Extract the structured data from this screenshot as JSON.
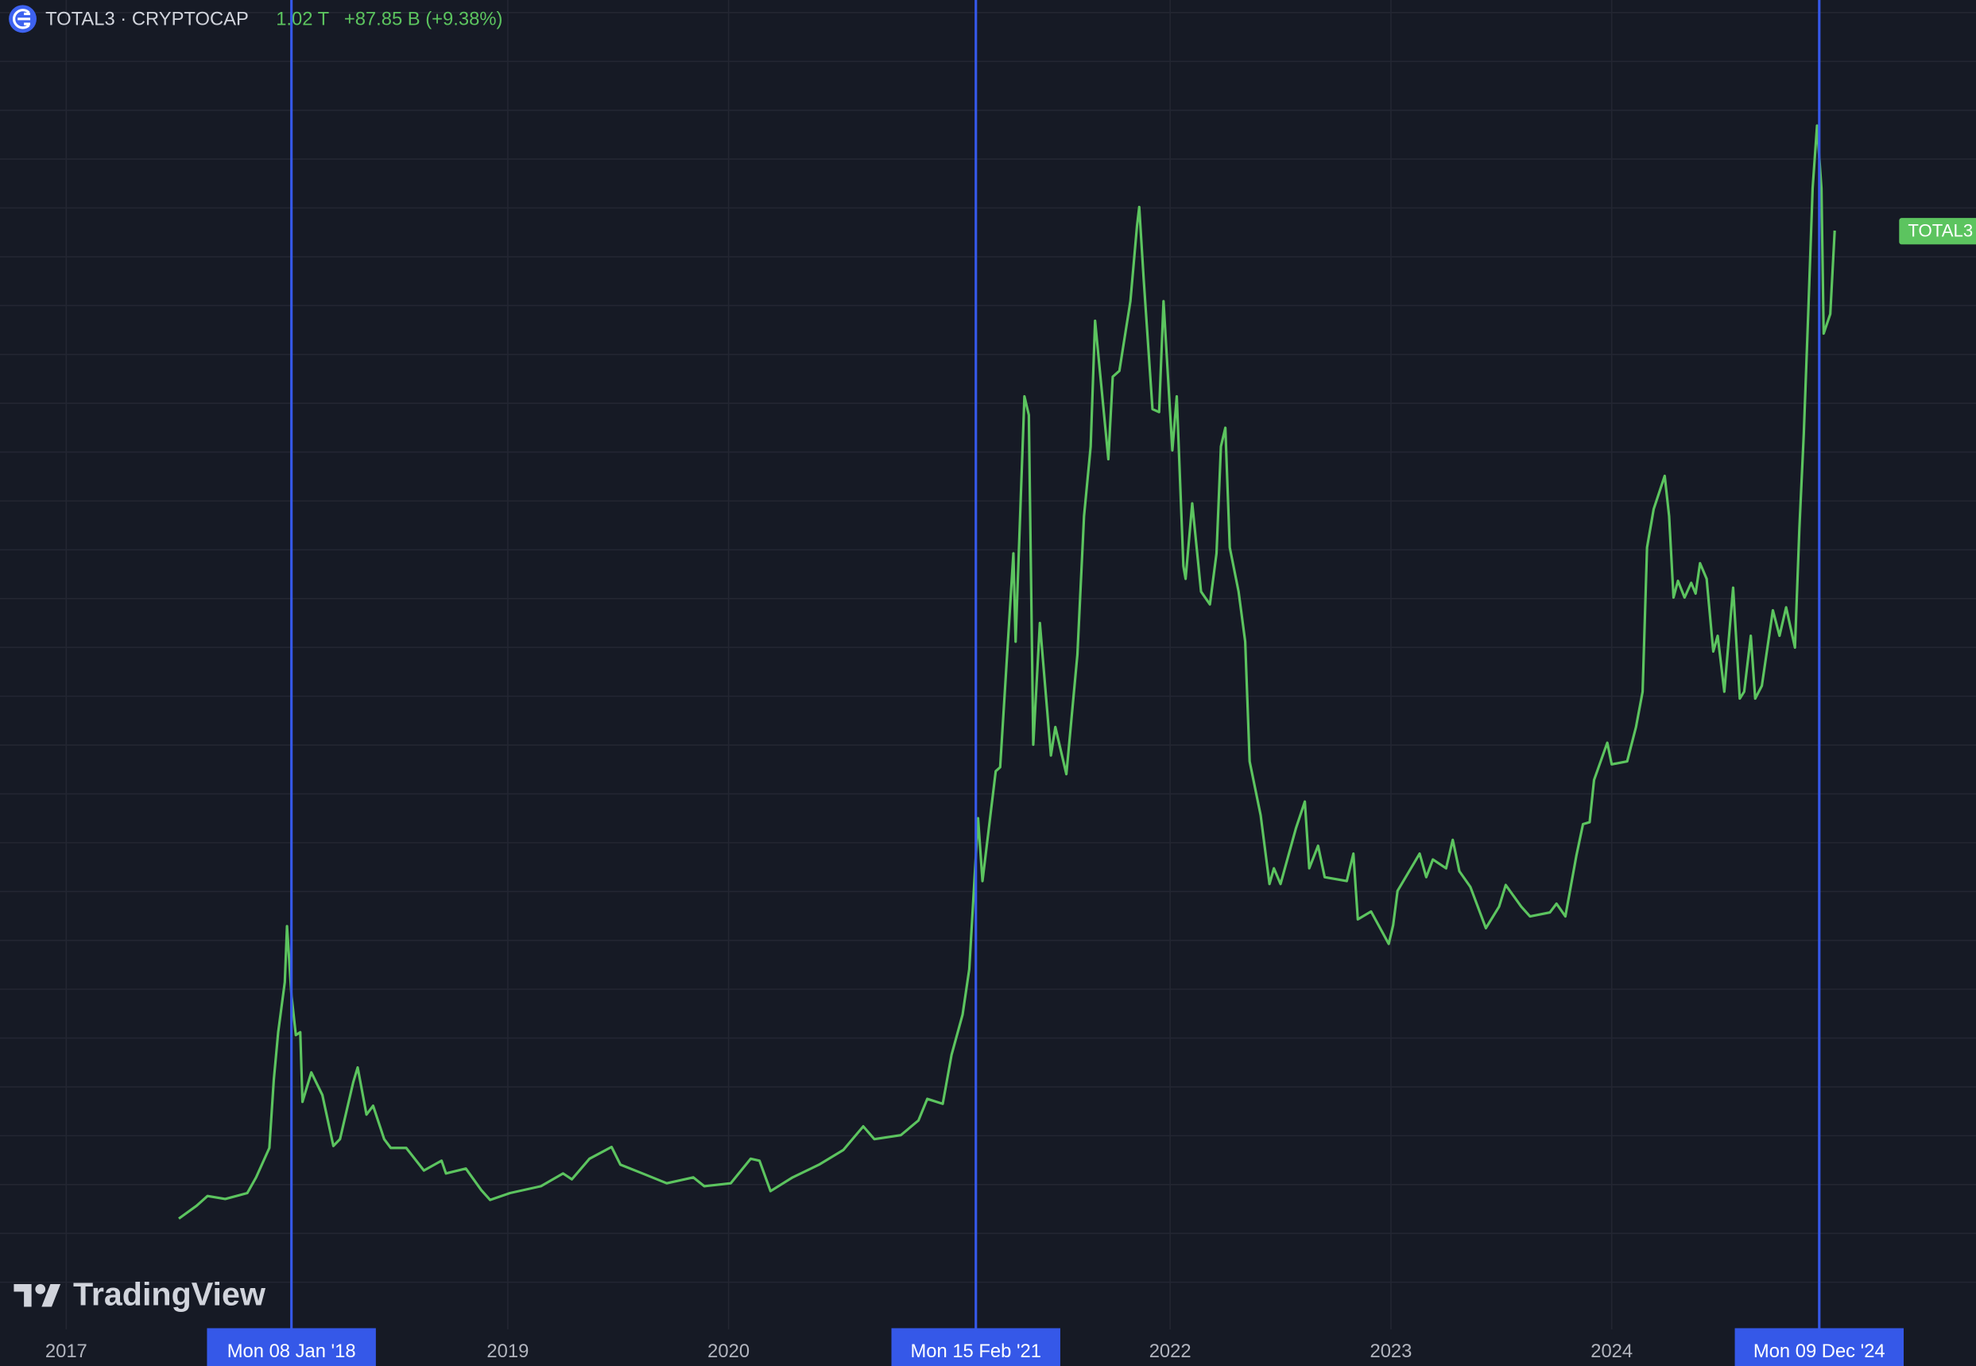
{
  "chart_data": {
    "type": "line",
    "header": {
      "symbol": "TOTAL3 · CRYPTOCAP",
      "price": "1.02 T",
      "change": "+87.85 B (+9.38%)"
    },
    "watermark": "TradingView",
    "x": [
      2017.51,
      2017.59,
      2017.64,
      2017.72,
      2017.82,
      2017.86,
      2017.92,
      2017.94,
      2017.96,
      2017.99,
      2018.0,
      2018.02,
      2018.04,
      2018.06,
      2018.07,
      2018.11,
      2018.16,
      2018.21,
      2018.24,
      2018.3,
      2018.32,
      2018.36,
      2018.39,
      2018.44,
      2018.47,
      2018.54,
      2018.62,
      2018.7,
      2018.72,
      2018.81,
      2018.88,
      2018.92,
      2019.01,
      2019.15,
      2019.25,
      2019.29,
      2019.37,
      2019.47,
      2019.51,
      2019.61,
      2019.72,
      2019.84,
      2019.89,
      2020.01,
      2020.1,
      2020.14,
      2020.19,
      2020.29,
      2020.41,
      2020.52,
      2020.61,
      2020.66,
      2020.78,
      2020.86,
      2020.9,
      2020.97,
      2021.01,
      2021.06,
      2021.09,
      2021.13,
      2021.15,
      2021.21,
      2021.23,
      2021.29,
      2021.3,
      2021.34,
      2021.36,
      2021.38,
      2021.41,
      2021.46,
      2021.48,
      2021.53,
      2021.58,
      2021.61,
      2021.64,
      2021.66,
      2021.72,
      2021.74,
      2021.77,
      2021.82,
      2021.85,
      2021.86,
      2021.88,
      2021.92,
      2021.95,
      2021.97,
      2022.01,
      2022.03,
      2022.06,
      2022.07,
      2022.1,
      2022.14,
      2022.18,
      2022.21,
      2022.23,
      2022.25,
      2022.27,
      2022.31,
      2022.34,
      2022.36,
      2022.41,
      2022.45,
      2022.47,
      2022.5,
      2022.57,
      2022.61,
      2022.63,
      2022.67,
      2022.7,
      2022.8,
      2022.83,
      2022.85,
      2022.91,
      2022.99,
      2023.01,
      2023.03,
      2023.13,
      2023.16,
      2023.19,
      2023.25,
      2023.28,
      2023.31,
      2023.36,
      2023.43,
      2023.49,
      2023.52,
      2023.59,
      2023.63,
      2023.72,
      2023.75,
      2023.79,
      2023.84,
      2023.87,
      2023.9,
      2023.92,
      2023.98,
      2024.0,
      2024.07,
      2024.11,
      2024.14,
      2024.16,
      2024.19,
      2024.24,
      2024.26,
      2024.28,
      2024.3,
      2024.33,
      2024.36,
      2024.38,
      2024.4,
      2024.43,
      2024.46,
      2024.48,
      2024.51,
      2024.55,
      2024.58,
      2024.6,
      2024.63,
      2024.65,
      2024.68,
      2024.73,
      2024.76,
      2024.79,
      2024.83,
      2024.85,
      2024.87,
      2024.89,
      2024.91,
      2024.93,
      2024.95,
      2024.96,
      2024.99,
      2025.01
    ],
    "series": [
      {
        "name": "TOTAL3",
        "color": "#5cc45f",
        "values": [
          0.013,
          0.026,
          0.036,
          0.033,
          0.039,
          0.055,
          0.085,
          0.154,
          0.203,
          0.254,
          0.311,
          0.241,
          0.2,
          0.203,
          0.132,
          0.162,
          0.139,
          0.087,
          0.094,
          0.152,
          0.167,
          0.119,
          0.128,
          0.094,
          0.085,
          0.085,
          0.062,
          0.072,
          0.059,
          0.064,
          0.042,
          0.032,
          0.039,
          0.046,
          0.059,
          0.053,
          0.074,
          0.086,
          0.068,
          0.059,
          0.049,
          0.055,
          0.046,
          0.049,
          0.074,
          0.072,
          0.041,
          0.055,
          0.068,
          0.083,
          0.107,
          0.094,
          0.098,
          0.113,
          0.135,
          0.13,
          0.18,
          0.221,
          0.267,
          0.421,
          0.357,
          0.469,
          0.473,
          0.691,
          0.601,
          0.851,
          0.832,
          0.496,
          0.62,
          0.485,
          0.514,
          0.466,
          0.588,
          0.729,
          0.8,
          0.928,
          0.787,
          0.871,
          0.877,
          0.948,
          1.025,
          1.044,
          0.971,
          0.838,
          0.835,
          0.948,
          0.796,
          0.851,
          0.678,
          0.665,
          0.742,
          0.652,
          0.639,
          0.691,
          0.8,
          0.819,
          0.697,
          0.652,
          0.601,
          0.479,
          0.424,
          0.354,
          0.37,
          0.354,
          0.411,
          0.438,
          0.37,
          0.393,
          0.361,
          0.357,
          0.385,
          0.318,
          0.326,
          0.293,
          0.312,
          0.347,
          0.385,
          0.361,
          0.379,
          0.37,
          0.399,
          0.367,
          0.351,
          0.309,
          0.331,
          0.353,
          0.331,
          0.321,
          0.325,
          0.334,
          0.321,
          0.383,
          0.415,
          0.417,
          0.46,
          0.498,
          0.476,
          0.479,
          0.514,
          0.55,
          0.697,
          0.736,
          0.77,
          0.729,
          0.646,
          0.663,
          0.646,
          0.661,
          0.65,
          0.681,
          0.665,
          0.591,
          0.607,
          0.55,
          0.656,
          0.543,
          0.55,
          0.607,
          0.543,
          0.556,
          0.633,
          0.607,
          0.636,
          0.595,
          0.716,
          0.813,
          0.935,
          1.063,
          1.127,
          1.063,
          0.915,
          0.935,
          1.02
        ]
      }
    ],
    "xlim": [
      2016.7,
      2025.65
    ],
    "ylim": [
      -0.1,
      1.255
    ],
    "xticks": [
      2017,
      2019,
      2020,
      2022,
      2023,
      2024
    ],
    "grid": true,
    "markers": [
      {
        "x": 2018.02,
        "label": "Mon 08 Jan '18"
      },
      {
        "x": 2021.12,
        "label": "Mon 15 Feb '21"
      },
      {
        "x": 2024.94,
        "label": "Mon 09 Dec '24"
      }
    ],
    "marker_color": "#3558e8"
  }
}
